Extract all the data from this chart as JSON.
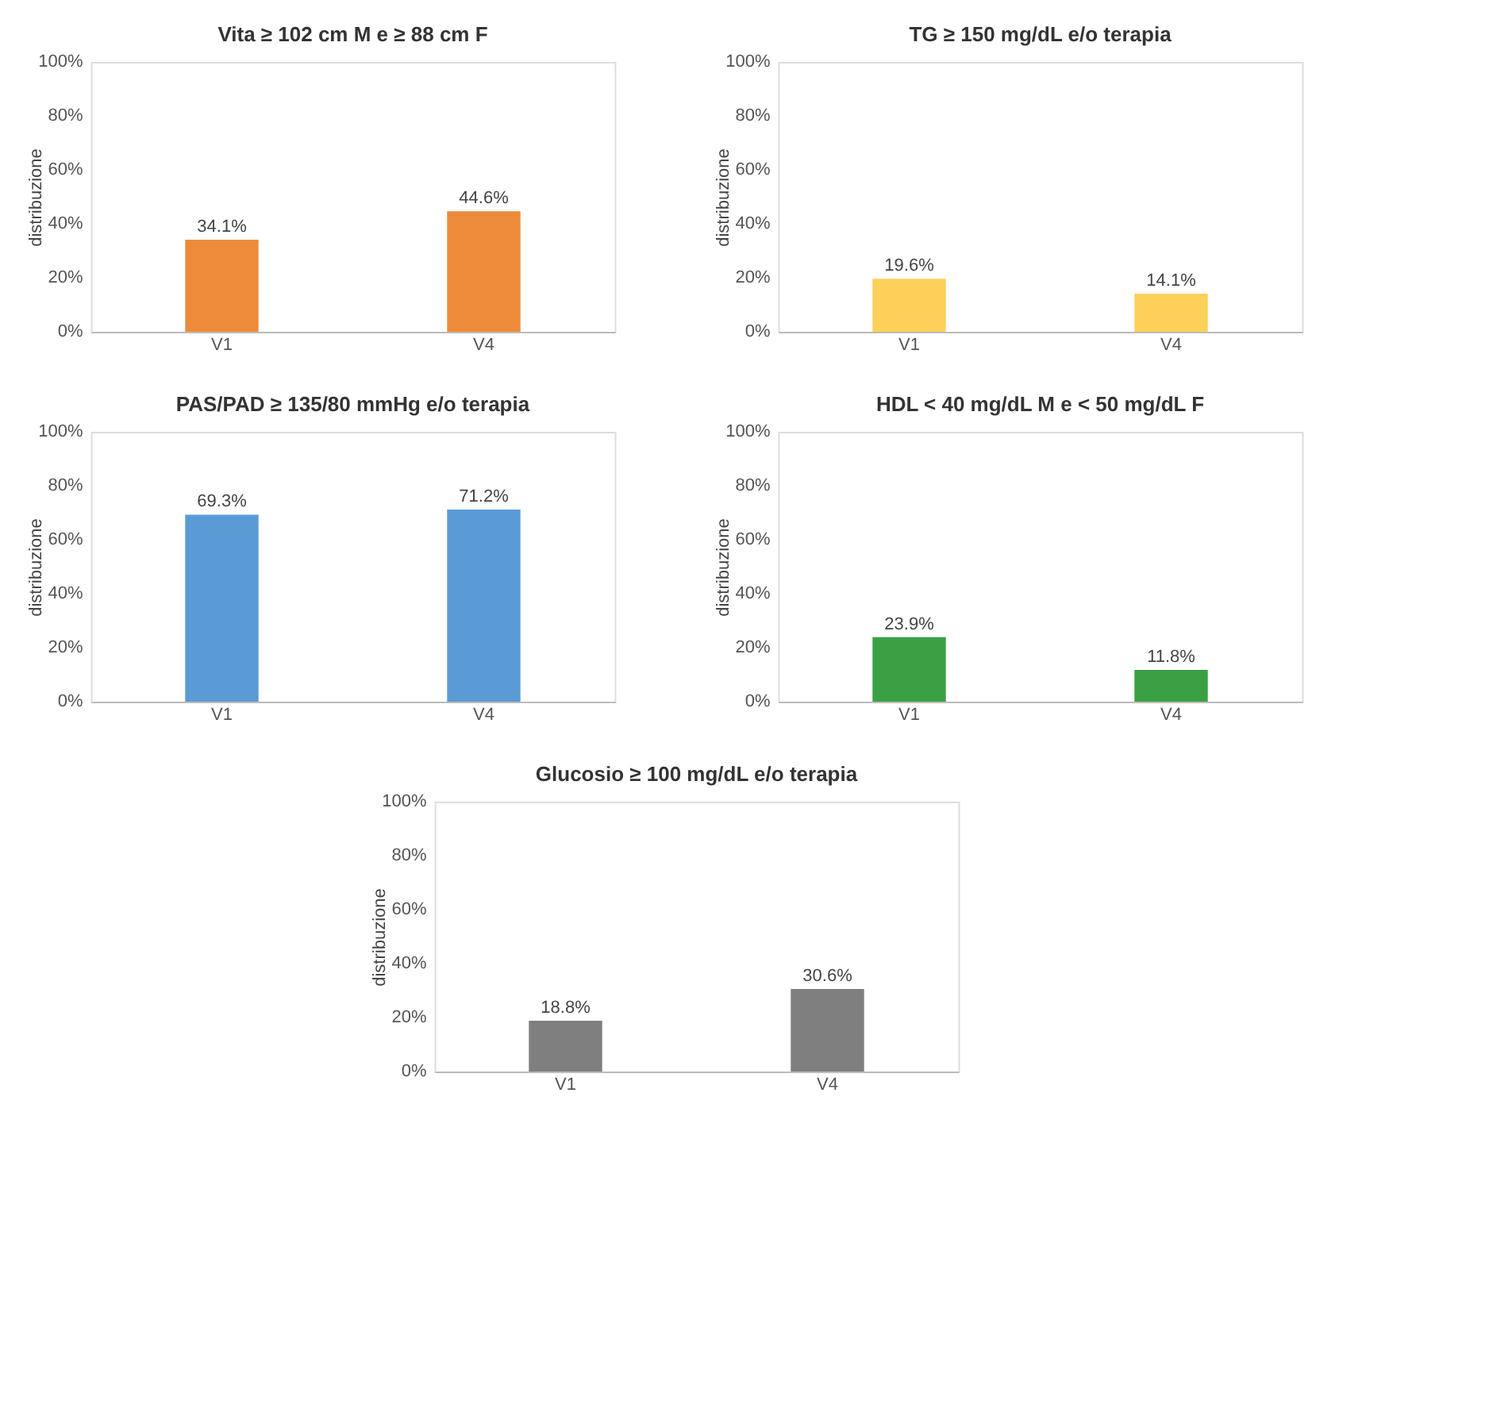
{
  "chart_data": [
    {
      "type": "bar",
      "title": "Vita ≥ 102 cm M  e ≥ 88 cm F",
      "ylabel": "distribuzione",
      "categories": [
        "V1",
        "V4"
      ],
      "values": [
        34.1,
        44.6
      ],
      "value_labels": [
        "34.1%",
        "44.6%"
      ],
      "color": "#ed8b3a",
      "ylim": [
        0,
        100
      ],
      "yticks": [
        {
          "value": 0,
          "label": "0%"
        },
        {
          "value": 20,
          "label": "20%"
        },
        {
          "value": 40,
          "label": "40%"
        },
        {
          "value": 60,
          "label": "60%"
        },
        {
          "value": 80,
          "label": "80%"
        },
        {
          "value": 100,
          "label": "100%"
        }
      ],
      "grid": false,
      "legend": false
    },
    {
      "type": "bar",
      "title": "TG ≥ 150 mg/dL e/o terapia",
      "ylabel": "distribuzione",
      "categories": [
        "V1",
        "V4"
      ],
      "values": [
        19.6,
        14.1
      ],
      "value_labels": [
        "19.6%",
        "14.1%"
      ],
      "color": "#fdd05a",
      "ylim": [
        0,
        100
      ],
      "yticks": [
        {
          "value": 0,
          "label": "0%"
        },
        {
          "value": 20,
          "label": "20%"
        },
        {
          "value": 40,
          "label": "40%"
        },
        {
          "value": 60,
          "label": "60%"
        },
        {
          "value": 80,
          "label": "80%"
        },
        {
          "value": 100,
          "label": "100%"
        }
      ],
      "grid": false,
      "legend": false
    },
    {
      "type": "bar",
      "title": "PAS/PAD ≥ 135/80 mmHg e/o terapia",
      "ylabel": "distribuzione",
      "categories": [
        "V1",
        "V4"
      ],
      "values": [
        69.3,
        71.2
      ],
      "value_labels": [
        "69.3%",
        "71.2%"
      ],
      "color": "#5b9bd5",
      "ylim": [
        0,
        100
      ],
      "yticks": [
        {
          "value": 0,
          "label": "0%"
        },
        {
          "value": 20,
          "label": "20%"
        },
        {
          "value": 40,
          "label": "40%"
        },
        {
          "value": 60,
          "label": "60%"
        },
        {
          "value": 80,
          "label": "80%"
        },
        {
          "value": 100,
          "label": "100%"
        }
      ],
      "grid": false,
      "legend": false
    },
    {
      "type": "bar",
      "title": "HDL < 40 mg/dL M e < 50 mg/dL F",
      "ylabel": "distribuzione",
      "categories": [
        "V1",
        "V4"
      ],
      "values": [
        23.9,
        11.8
      ],
      "value_labels": [
        "23.9%",
        "11.8%"
      ],
      "color": "#3aa043",
      "ylim": [
        0,
        100
      ],
      "yticks": [
        {
          "value": 0,
          "label": "0%"
        },
        {
          "value": 20,
          "label": "20%"
        },
        {
          "value": 40,
          "label": "40%"
        },
        {
          "value": 60,
          "label": "60%"
        },
        {
          "value": 80,
          "label": "80%"
        },
        {
          "value": 100,
          "label": "100%"
        }
      ],
      "grid": false,
      "legend": false
    },
    {
      "type": "bar",
      "title": "Glucosio ≥ 100 mg/dL e/o terapia",
      "ylabel": "distribuzione",
      "categories": [
        "V1",
        "V4"
      ],
      "values": [
        18.8,
        30.6
      ],
      "value_labels": [
        "18.8%",
        "30.6%"
      ],
      "color": "#7f7f7f",
      "ylim": [
        0,
        100
      ],
      "yticks": [
        {
          "value": 0,
          "label": "0%"
        },
        {
          "value": 20,
          "label": "20%"
        },
        {
          "value": 40,
          "label": "40%"
        },
        {
          "value": 60,
          "label": "60%"
        },
        {
          "value": 80,
          "label": "80%"
        },
        {
          "value": 100,
          "label": "100%"
        }
      ],
      "grid": false,
      "legend": false
    }
  ]
}
